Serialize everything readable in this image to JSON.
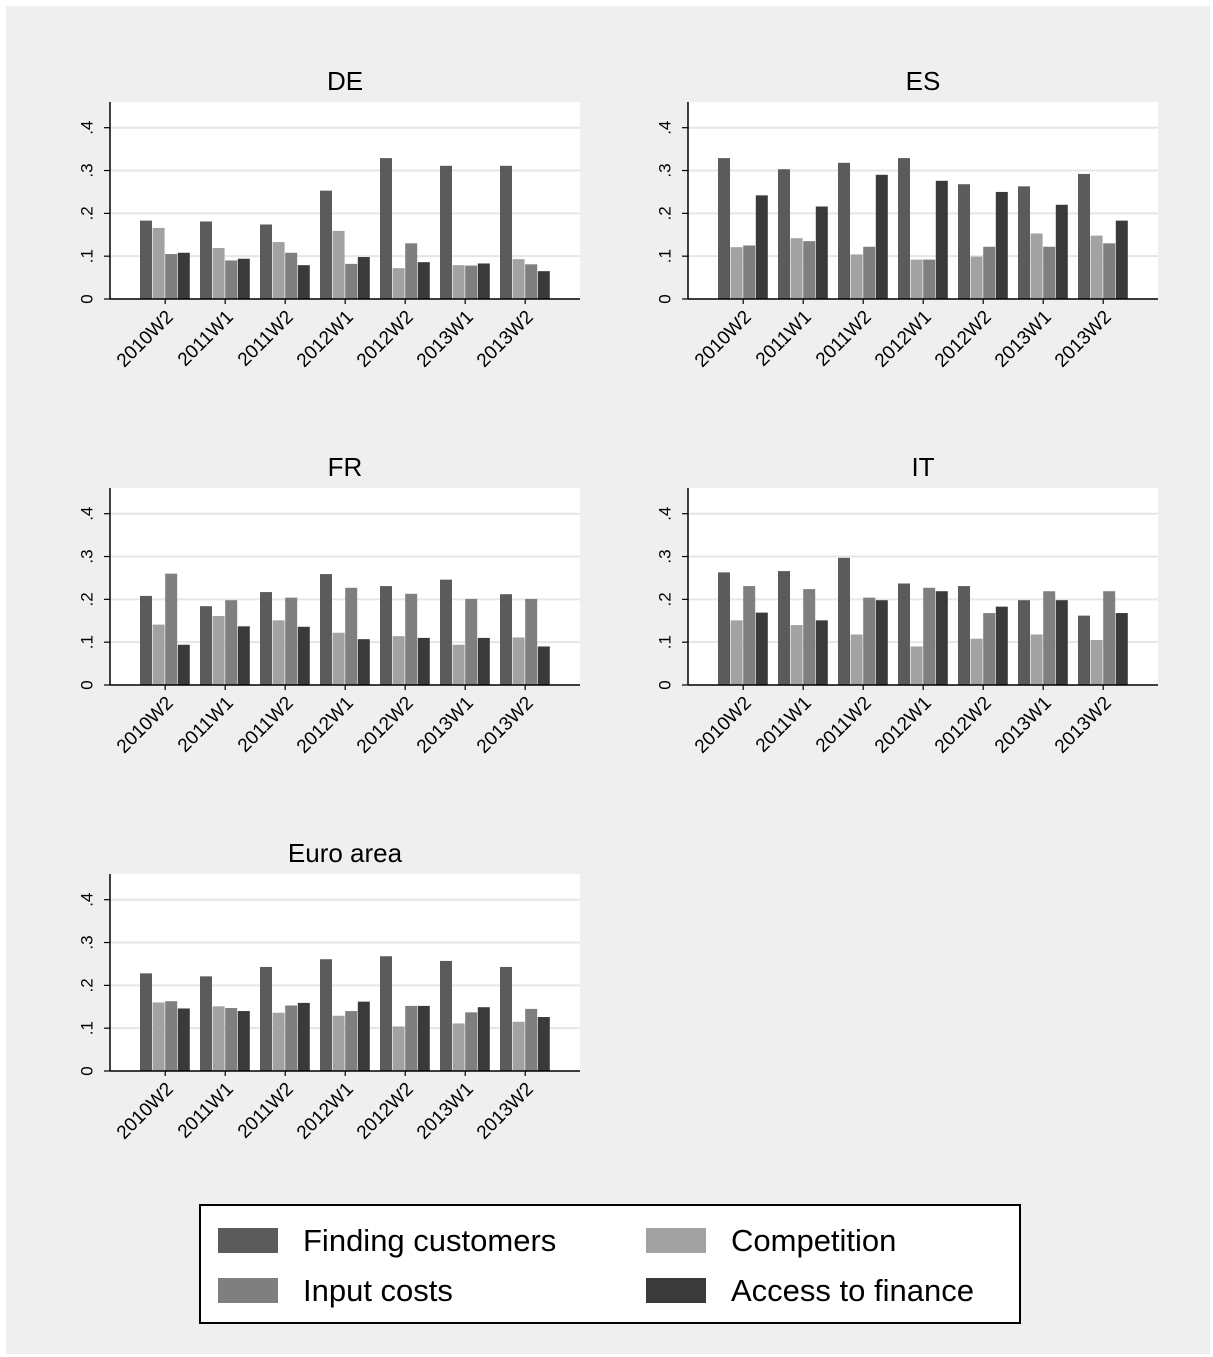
{
  "chart_data": {
    "type": "bar",
    "categories": [
      "2010W2",
      "2011W1",
      "2011W2",
      "2012W1",
      "2012W2",
      "2013W1",
      "2013W2"
    ],
    "ylim": [
      0,
      0.46
    ],
    "yticks": [
      0,
      0.1,
      0.2,
      0.3,
      0.4
    ],
    "ytick_labels": [
      "0",
      ".1",
      ".2",
      ".3",
      ".4"
    ],
    "grid": true,
    "legend_position": "bottom",
    "series_meta": [
      {
        "name": "Finding customers",
        "color": "#5b5b5b"
      },
      {
        "name": "Competition",
        "color": "#a2a2a2"
      },
      {
        "name": "Input costs",
        "color": "#7f7f7f"
      },
      {
        "name": "Access to finance",
        "color": "#3a3a3a"
      }
    ],
    "panels": [
      {
        "title": "DE",
        "series": [
          {
            "name": "Finding customers",
            "values": [
              0.183,
              0.181,
              0.174,
              0.253,
              0.329,
              0.311,
              0.311
            ]
          },
          {
            "name": "Competition",
            "values": [
              0.166,
              0.119,
              0.133,
              0.159,
              0.072,
              0.079,
              0.093
            ]
          },
          {
            "name": "Input costs",
            "values": [
              0.105,
              0.09,
              0.108,
              0.082,
              0.13,
              0.078,
              0.081
            ]
          },
          {
            "name": "Access to finance",
            "values": [
              0.108,
              0.094,
              0.079,
              0.098,
              0.086,
              0.083,
              0.065
            ]
          }
        ]
      },
      {
        "title": "ES",
        "series": [
          {
            "name": "Finding customers",
            "values": [
              0.329,
              0.303,
              0.318,
              0.329,
              0.268,
              0.263,
              0.292
            ]
          },
          {
            "name": "Competition",
            "values": [
              0.121,
              0.142,
              0.104,
              0.092,
              0.099,
              0.153,
              0.148
            ]
          },
          {
            "name": "Input costs",
            "values": [
              0.125,
              0.135,
              0.122,
              0.092,
              0.122,
              0.122,
              0.13
            ]
          },
          {
            "name": "Access to finance",
            "values": [
              0.242,
              0.216,
              0.29,
              0.276,
              0.25,
              0.22,
              0.183
            ]
          }
        ]
      },
      {
        "title": "FR",
        "series": [
          {
            "name": "Finding customers",
            "values": [
              0.208,
              0.184,
              0.217,
              0.259,
              0.231,
              0.246,
              0.212
            ]
          },
          {
            "name": "Competition",
            "values": [
              0.141,
              0.161,
              0.151,
              0.122,
              0.114,
              0.094,
              0.111
            ]
          },
          {
            "name": "Input costs",
            "values": [
              0.26,
              0.198,
              0.204,
              0.227,
              0.213,
              0.201,
              0.201
            ]
          },
          {
            "name": "Access to finance",
            "values": [
              0.094,
              0.137,
              0.136,
              0.107,
              0.11,
              0.11,
              0.09
            ]
          }
        ]
      },
      {
        "title": "IT",
        "series": [
          {
            "name": "Finding customers",
            "values": [
              0.263,
              0.266,
              0.297,
              0.237,
              0.231,
              0.198,
              0.162
            ]
          },
          {
            "name": "Competition",
            "values": [
              0.151,
              0.14,
              0.118,
              0.09,
              0.108,
              0.118,
              0.105
            ]
          },
          {
            "name": "Input costs",
            "values": [
              0.231,
              0.224,
              0.204,
              0.227,
              0.168,
              0.219,
              0.219
            ]
          },
          {
            "name": "Access to finance",
            "values": [
              0.169,
              0.151,
              0.198,
              0.219,
              0.183,
              0.198,
              0.168
            ]
          }
        ]
      },
      {
        "title": "Euro area",
        "series": [
          {
            "name": "Finding customers",
            "values": [
              0.228,
              0.221,
              0.243,
              0.261,
              0.268,
              0.257,
              0.243
            ]
          },
          {
            "name": "Competition",
            "values": [
              0.16,
              0.151,
              0.136,
              0.129,
              0.104,
              0.111,
              0.115
            ]
          },
          {
            "name": "Input costs",
            "values": [
              0.163,
              0.147,
              0.153,
              0.14,
              0.152,
              0.137,
              0.145
            ]
          },
          {
            "name": "Access to finance",
            "values": [
              0.146,
              0.14,
              0.159,
              0.162,
              0.152,
              0.149,
              0.126
            ]
          }
        ]
      }
    ],
    "legend": [
      {
        "label": "Finding customers",
        "color": "#5b5b5b"
      },
      {
        "label": "Competition",
        "color": "#a2a2a2"
      },
      {
        "label": "Input costs",
        "color": "#7f7f7f"
      },
      {
        "label": "Access to finance",
        "color": "#3a3a3a"
      }
    ]
  }
}
